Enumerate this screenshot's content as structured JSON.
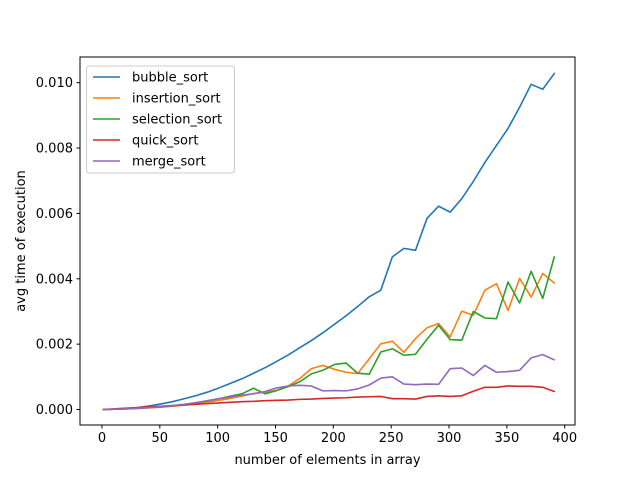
{
  "chart_data": {
    "type": "line",
    "xlabel": "number of elements in array",
    "ylabel": "avg time of execution",
    "grid": false,
    "background": "#ffffff",
    "spine_color": "#000000",
    "xlim": [
      -19.0,
      408.9
    ],
    "ylim": [
      -0.000474,
      0.010786
    ],
    "xticks": {
      "values": [
        0,
        50,
        100,
        150,
        200,
        250,
        300,
        350,
        400
      ],
      "labels": [
        "0",
        "50",
        "100",
        "150",
        "200",
        "250",
        "300",
        "350",
        "400"
      ]
    },
    "yticks": {
      "values": [
        0.0,
        0.002,
        0.004,
        0.006,
        0.008,
        0.01
      ],
      "labels": [
        "0.000",
        "0.002",
        "0.004",
        "0.006",
        "0.008",
        "0.010"
      ]
    },
    "x": [
      1,
      11,
      21,
      31,
      41,
      51,
      61,
      71,
      81,
      91,
      101,
      111,
      121,
      131,
      141,
      151,
      161,
      171,
      181,
      191,
      201,
      211,
      221,
      231,
      241,
      251,
      261,
      271,
      281,
      291,
      301,
      311,
      321,
      331,
      341,
      351,
      361,
      371,
      381,
      391
    ],
    "series": [
      {
        "name": "bubble_sort",
        "color": "#1f77b4",
        "values": [
          0.0,
          1e-05,
          3e-05,
          6e-05,
          0.00011,
          0.00017,
          0.00024,
          0.00033,
          0.00042,
          0.00053,
          0.00066,
          0.0008,
          0.00094,
          0.00111,
          0.00128,
          0.00147,
          0.00167,
          0.00189,
          0.00211,
          0.00235,
          0.00261,
          0.00287,
          0.00315,
          0.00345,
          0.00365,
          0.00467,
          0.00493,
          0.00487,
          0.00585,
          0.00622,
          0.00604,
          0.00645,
          0.00698,
          0.00756,
          0.00808,
          0.0086,
          0.00925,
          0.00995,
          0.0098,
          0.01028
        ]
      },
      {
        "name": "insertion_sort",
        "color": "#ff7f0e",
        "values": [
          0.0,
          1e-05,
          2e-05,
          3e-05,
          5e-05,
          7e-05,
          0.0001,
          0.00013,
          0.00017,
          0.00022,
          0.00028,
          0.00034,
          0.00041,
          0.00049,
          0.00053,
          0.00058,
          0.00072,
          0.00095,
          0.00125,
          0.00135,
          0.00123,
          0.00114,
          0.0011,
          0.00155,
          0.00201,
          0.00209,
          0.00175,
          0.00217,
          0.0025,
          0.00263,
          0.00222,
          0.00301,
          0.00288,
          0.00365,
          0.00385,
          0.00303,
          0.00401,
          0.00344,
          0.00416,
          0.00387
        ]
      },
      {
        "name": "selection_sort",
        "color": "#2ca02c",
        "values": [
          0.0,
          1e-05,
          2e-05,
          4e-05,
          6e-05,
          8e-05,
          0.00011,
          0.00015,
          0.0002,
          0.00026,
          0.00033,
          0.00041,
          0.00048,
          0.00065,
          0.00048,
          0.00058,
          0.0007,
          0.00085,
          0.00109,
          0.0012,
          0.00138,
          0.00142,
          0.00111,
          0.00108,
          0.00176,
          0.00186,
          0.00166,
          0.00169,
          0.00215,
          0.00258,
          0.00214,
          0.00212,
          0.003,
          0.0028,
          0.00278,
          0.0039,
          0.00326,
          0.00423,
          0.0034,
          0.00467
        ]
      },
      {
        "name": "quick_sort",
        "color": "#d62728",
        "values": [
          0.0,
          2e-05,
          4e-05,
          6e-05,
          8e-05,
          0.0001,
          0.00012,
          0.00014,
          0.00016,
          0.00018,
          0.0002,
          0.00022,
          0.00024,
          0.00025,
          0.00027,
          0.00028,
          0.00029,
          0.00031,
          0.00032,
          0.00034,
          0.00035,
          0.00036,
          0.00038,
          0.00039,
          0.0004,
          0.00033,
          0.00033,
          0.00032,
          0.0004,
          0.00042,
          0.0004,
          0.00042,
          0.00056,
          0.00068,
          0.00068,
          0.00072,
          0.00071,
          0.00071,
          0.00068,
          0.00055
        ]
      },
      {
        "name": "merge_sort",
        "color": "#9467bd",
        "values": [
          0.0,
          1e-05,
          2e-05,
          4e-05,
          6e-05,
          9e-05,
          0.00012,
          0.00016,
          0.00021,
          0.00027,
          0.00033,
          0.00038,
          0.00044,
          0.00048,
          0.00055,
          0.00066,
          0.00072,
          0.00074,
          0.00072,
          0.00057,
          0.00058,
          0.00057,
          0.00063,
          0.00075,
          0.00096,
          0.001,
          0.00078,
          0.00076,
          0.00078,
          0.00077,
          0.00125,
          0.00127,
          0.00104,
          0.00135,
          0.00114,
          0.00116,
          0.0012,
          0.00158,
          0.00168,
          0.00152
        ]
      }
    ],
    "legend": {
      "position": "upper left",
      "labels": [
        "bubble_sort",
        "insertion_sort",
        "selection_sort",
        "quick_sort",
        "merge_sort"
      ]
    }
  }
}
